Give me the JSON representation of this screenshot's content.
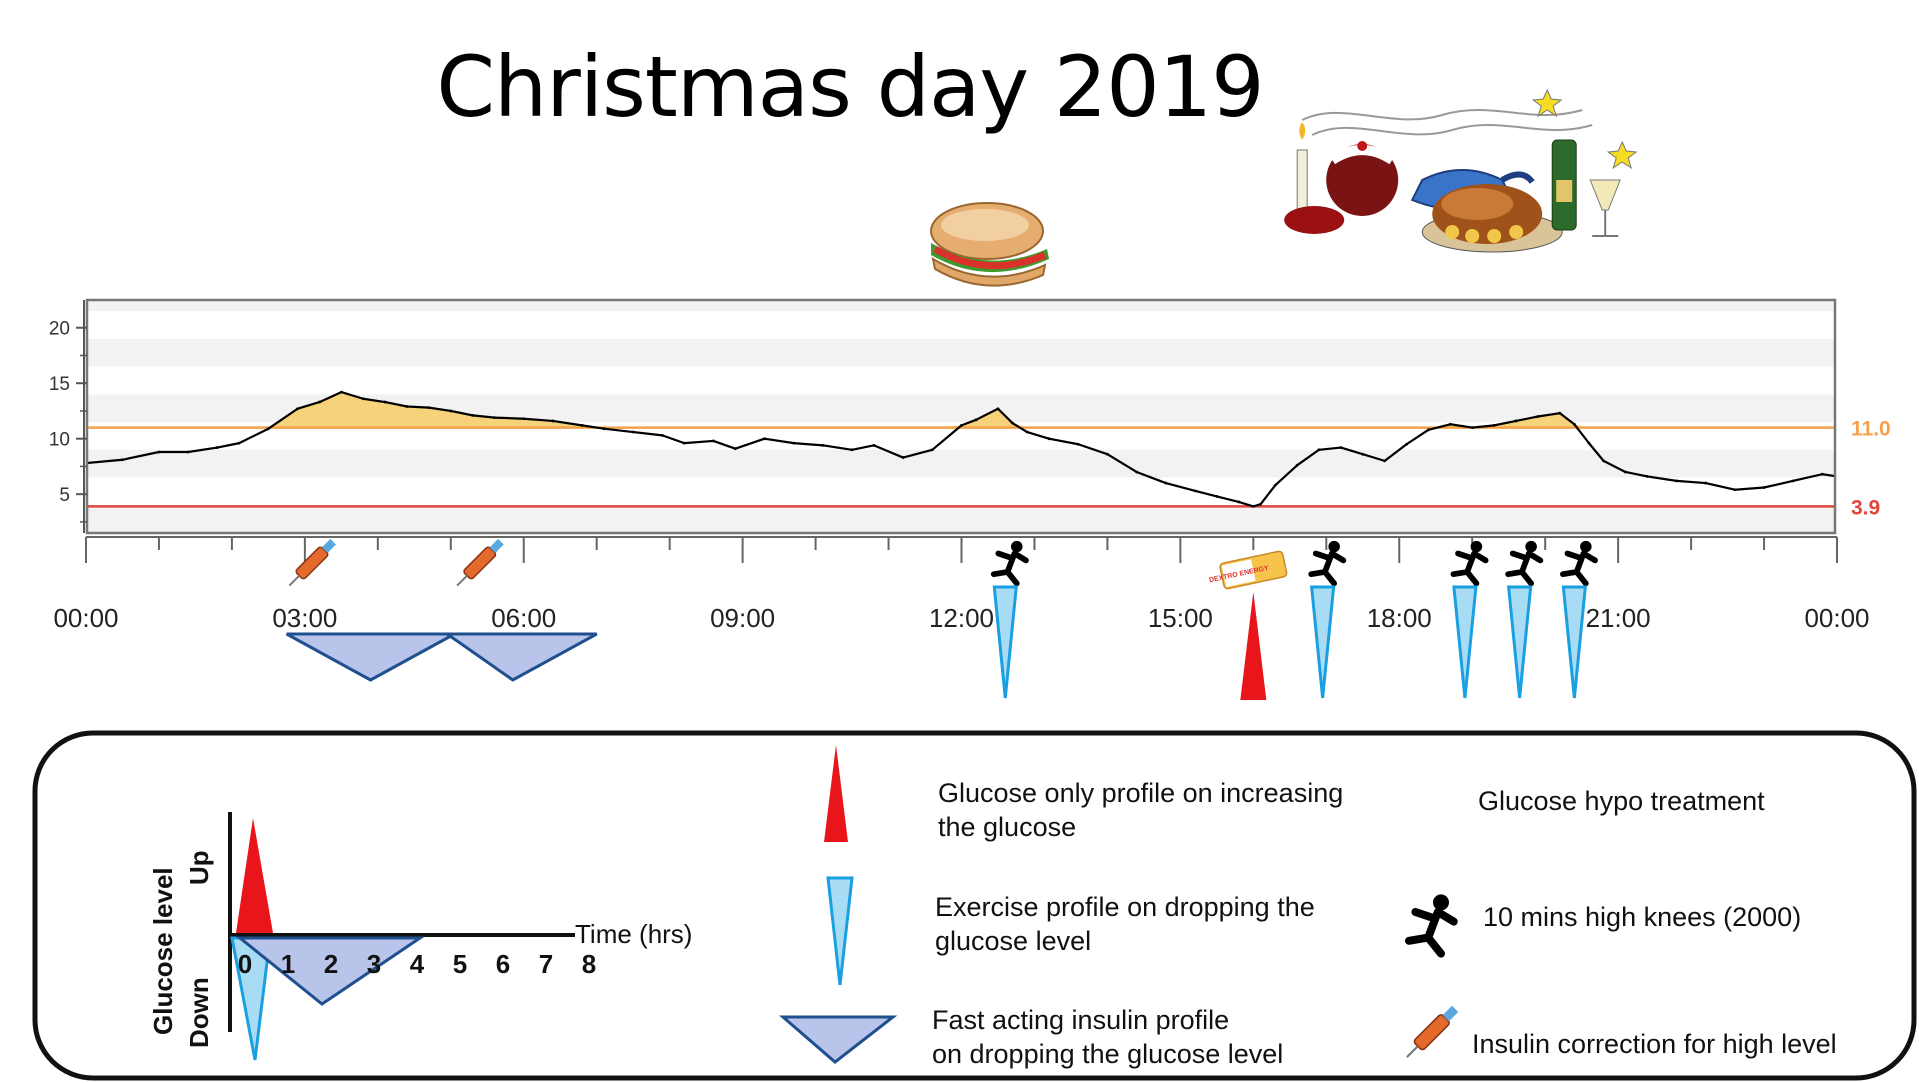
{
  "chart_data": {
    "type": "area",
    "title": "Christmas day 2019",
    "y_ticks": [
      "5",
      "10",
      "15",
      "20"
    ],
    "y_tick_values": [
      5,
      10,
      15,
      20
    ],
    "ylim": [
      1.5,
      22.5
    ],
    "x_ticks": [
      "00:00",
      "03:00",
      "06:00",
      "09:00",
      "12:00",
      "15:00",
      "18:00",
      "21:00",
      "00:00"
    ],
    "x_tick_hours": [
      0,
      3,
      6,
      9,
      12,
      15,
      18,
      21,
      24
    ],
    "xlim_hours": [
      0,
      24
    ],
    "grid": "horizontal bands",
    "thresholds": [
      {
        "value": 11.0,
        "label": "11.0",
        "color": "#f4a24a"
      },
      {
        "value": 3.9,
        "label": "3.9",
        "color": "#e0453a"
      }
    ],
    "high_fill_color": "#f6d27a",
    "series": [
      {
        "x_hours": [
          0,
          0.5,
          1,
          1.4,
          1.8,
          2.1,
          2.5,
          2.9,
          3.2,
          3.5,
          3.8,
          4.1,
          4.4,
          4.7,
          5.0,
          5.3,
          5.6,
          6.0,
          6.4,
          6.8,
          7.1,
          7.5,
          7.9,
          8.2,
          8.6,
          8.9,
          9.3,
          9.7,
          10.1,
          10.5,
          10.8,
          11.2,
          11.6,
          12.0,
          12.2,
          12.5,
          12.7,
          12.9,
          13.2,
          13.6,
          14.0,
          14.4,
          14.8,
          15.2,
          15.5,
          15.8,
          16.0,
          16.1,
          16.3,
          16.6,
          16.9,
          17.2,
          17.5,
          17.8,
          18.1,
          18.4,
          18.7,
          19.0,
          19.3,
          19.6,
          19.9,
          20.2,
          20.4,
          20.6,
          20.8,
          21.1,
          21.4,
          21.8,
          22.2,
          22.6,
          23.0,
          23.4,
          23.8,
          24.0
        ],
        "y_values": [
          7.8,
          8.1,
          8.8,
          8.8,
          9.2,
          9.6,
          10.9,
          12.7,
          13.3,
          14.2,
          13.6,
          13.3,
          12.9,
          12.8,
          12.5,
          12.1,
          11.9,
          11.8,
          11.6,
          11.2,
          10.9,
          10.6,
          10.3,
          9.6,
          9.8,
          9.1,
          10.0,
          9.6,
          9.4,
          9.0,
          9.4,
          8.3,
          9.0,
          11.2,
          11.7,
          12.7,
          11.4,
          10.6,
          10.0,
          9.5,
          8.6,
          7.0,
          6.0,
          5.3,
          4.8,
          4.3,
          3.9,
          4.1,
          5.8,
          7.6,
          9.0,
          9.2,
          8.6,
          8.0,
          9.5,
          10.8,
          11.3,
          11.0,
          11.2,
          11.6,
          12.0,
          12.3,
          11.3,
          9.6,
          8.0,
          7.0,
          6.6,
          6.2,
          6.0,
          5.4,
          5.6,
          6.2,
          6.8,
          6.6
        ]
      }
    ],
    "event_markers": [
      {
        "type": "insulin-correction",
        "hour": 3.0
      },
      {
        "type": "insulin-correction",
        "hour": 5.3
      },
      {
        "type": "exercise",
        "hour": 12.6
      },
      {
        "type": "glucose-hypo-treatment",
        "hour": 16.0
      },
      {
        "type": "exercise",
        "hour": 16.95
      },
      {
        "type": "exercise",
        "hour": 18.9
      },
      {
        "type": "exercise",
        "hour": 19.65
      },
      {
        "type": "exercise",
        "hour": 20.4
      }
    ],
    "profiles": [
      {
        "type": "fast-acting-insulin",
        "start_hour": 2.75,
        "peak_hour": 3.9,
        "end_hour": 5.05
      },
      {
        "type": "fast-acting-insulin",
        "start_hour": 4.95,
        "peak_hour": 5.85,
        "end_hour": 7.0
      },
      {
        "type": "exercise-drop",
        "hour": 12.6
      },
      {
        "type": "glucose-rise",
        "hour": 16.0
      },
      {
        "type": "exercise-drop",
        "hour": 16.95
      },
      {
        "type": "exercise-drop",
        "hour": 18.9
      },
      {
        "type": "exercise-drop",
        "hour": 19.65
      },
      {
        "type": "exercise-drop",
        "hour": 20.4
      }
    ],
    "meal_images": [
      {
        "name": "sandwich",
        "hour": 12.35
      },
      {
        "name": "christmas-dinner",
        "hour": 19.0
      }
    ]
  },
  "legend": {
    "glucose_profile": "Glucose only profile on increasing the glucose",
    "exercise_profile": "Exercise profile on dropping the glucose level",
    "insulin_profile": "Fast acting insulin profile on dropping the glucose level",
    "hypo_treatment": "Glucose hypo treatment",
    "high_knees": "10 mins high knees (2000)",
    "insulin_correction": "Insulin correction for high level",
    "time_axis_label": "Time (hrs)",
    "time_ticks": [
      "0",
      "1",
      "2",
      "3",
      "4",
      "5",
      "6",
      "7",
      "8"
    ],
    "glucose_level": "Glucose level",
    "up_label": "Up",
    "down_label": "Down"
  },
  "hypo_pack_text": "DEXTRO ENERGY",
  "colors": {
    "exercise_fill": "#a8dcf5",
    "exercise_stroke": "#1a9fe0",
    "glucose_fill": "#e8151a",
    "insulin_fill": "#b8c4ea",
    "insulin_stroke": "#1f4f8f"
  }
}
